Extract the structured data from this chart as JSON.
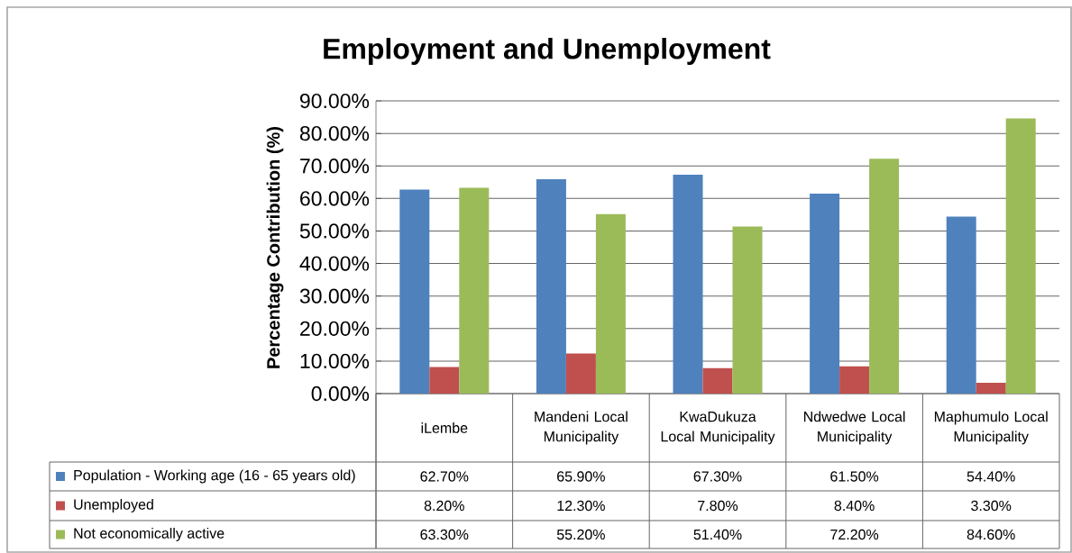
{
  "chart_data": {
    "type": "bar",
    "title": "Employment and Unemployment",
    "ylabel": "Percentage Contribution (%)",
    "categories": [
      "iLembe",
      "Mandeni Local Municipality",
      "KwaDukuza Local Municipality",
      "Ndwedwe Local Municipality",
      "Maphumulo Local Municipality"
    ],
    "series": [
      {
        "name": "Population - Working age (16 - 65 years old)",
        "color": "#4f81bd",
        "values": [
          62.7,
          65.9,
          67.3,
          61.5,
          54.4
        ],
        "value_labels": [
          "62.70%",
          "65.90%",
          "67.30%",
          "61.50%",
          "54.40%"
        ]
      },
      {
        "name": "Unemployed",
        "color": "#c0504d",
        "values": [
          8.2,
          12.3,
          7.8,
          8.4,
          3.3
        ],
        "value_labels": [
          "8.20%",
          "12.30%",
          "7.80%",
          "8.40%",
          "3.30%"
        ]
      },
      {
        "name": "Not economically active",
        "color": "#9bbb59",
        "values": [
          63.3,
          55.2,
          51.4,
          72.2,
          84.6
        ],
        "value_labels": [
          "63.30%",
          "55.20%",
          "51.40%",
          "72.20%",
          "84.60%"
        ]
      }
    ],
    "ylim": [
      0,
      90
    ],
    "yticks": [
      {
        "value": 0,
        "label": "0.00%"
      },
      {
        "value": 10,
        "label": "10.00%"
      },
      {
        "value": 20,
        "label": "20.00%"
      },
      {
        "value": 30,
        "label": "30.00%"
      },
      {
        "value": 40,
        "label": "40.00%"
      },
      {
        "value": 50,
        "label": "50.00%"
      },
      {
        "value": 60,
        "label": "60.00%"
      },
      {
        "value": 70,
        "label": "70.00%"
      },
      {
        "value": 80,
        "label": "80.00%"
      },
      {
        "value": 90,
        "label": "90.00%"
      }
    ],
    "grid": "y",
    "legend": "bottom"
  }
}
